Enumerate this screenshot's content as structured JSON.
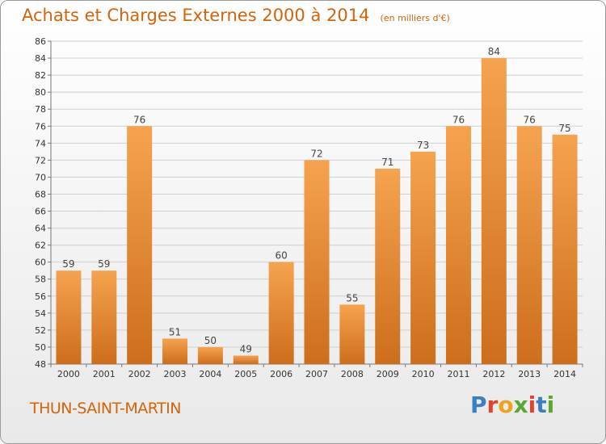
{
  "title": "Achats et Charges Externes 2000 à 2014",
  "subtitle": "(en milliers d'€)",
  "commune": "THUN-SAINT-MARTIN",
  "logo_text": "Proxiti",
  "colors": {
    "bar_light": "#f5a34f",
    "bar_dark": "#cd6e1c",
    "title": "#d2640a",
    "grid": "#cfcfcf"
  },
  "chart_data": {
    "type": "bar",
    "categories": [
      "2000",
      "2001",
      "2002",
      "2003",
      "2004",
      "2005",
      "2006",
      "2007",
      "2008",
      "2009",
      "2010",
      "2011",
      "2012",
      "2013",
      "2014"
    ],
    "values": [
      59,
      59,
      76,
      51,
      50,
      49,
      60,
      72,
      55,
      71,
      73,
      76,
      84,
      76,
      75
    ],
    "data_labels": [
      "59",
      "59",
      "76",
      "51",
      "50",
      "49",
      "60",
      "72",
      "55",
      "71",
      "73",
      "76",
      "84",
      "76",
      "75"
    ],
    "ylim": [
      48,
      86
    ],
    "yticks": [
      "48",
      "50",
      "52",
      "54",
      "56",
      "58",
      "60",
      "62",
      "64",
      "66",
      "68",
      "70",
      "72",
      "74",
      "76",
      "78",
      "80",
      "82",
      "84",
      "86"
    ],
    "grid": true
  }
}
